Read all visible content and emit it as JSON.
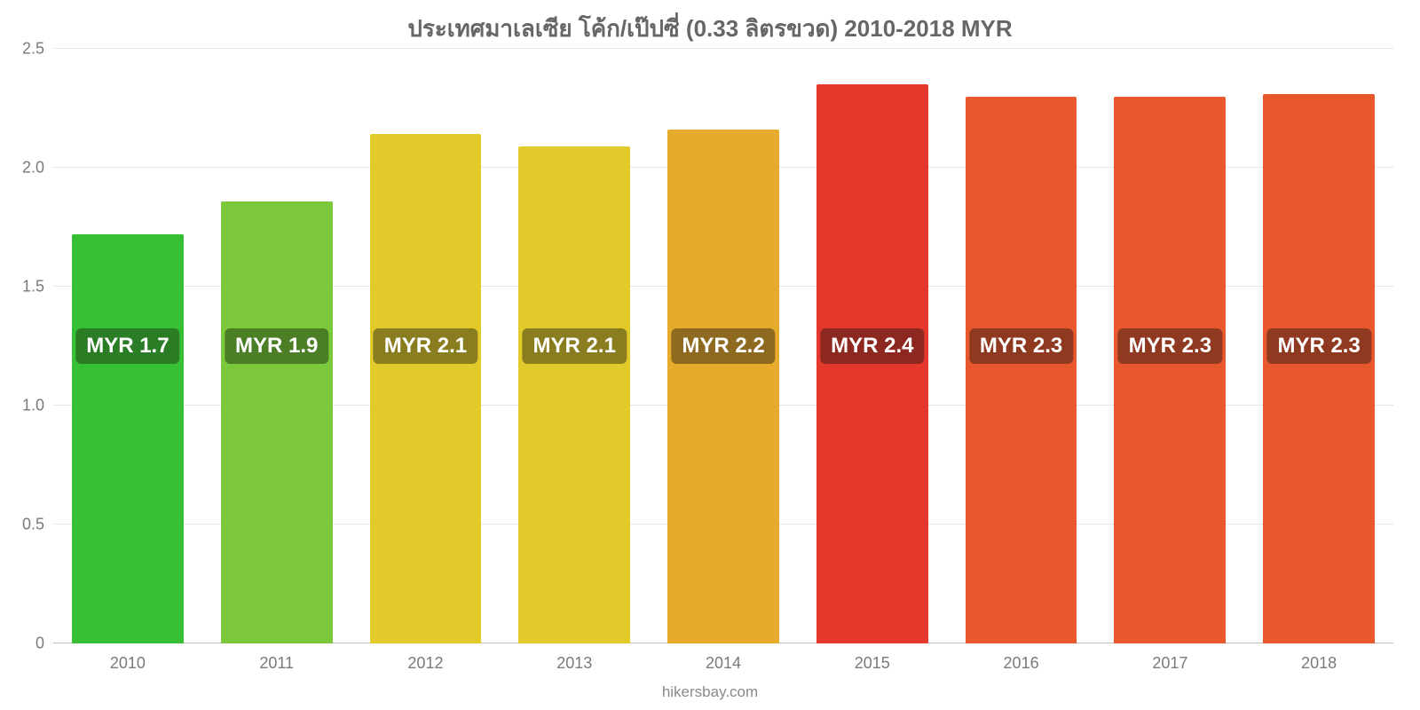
{
  "chart": {
    "type": "bar",
    "title": "ประเทศมาเลเซีย โค้ก/เป๊ปซี่ (0.33 ลิตรขวด) 2010-2018 MYR",
    "title_fontsize": 26,
    "title_color": "#666666",
    "background_color": "#ffffff",
    "grid_color": "#e5e5e5",
    "axis_color": "#bdbdbd",
    "tick_label_color": "#7a7a7a",
    "tick_label_fontsize": 18,
    "categories": [
      "2010",
      "2011",
      "2012",
      "2013",
      "2014",
      "2015",
      "2016",
      "2017",
      "2018"
    ],
    "values": [
      1.72,
      1.86,
      2.14,
      2.09,
      2.16,
      2.35,
      2.3,
      2.3,
      2.31
    ],
    "value_labels": [
      "MYR 1.7",
      "MYR 1.9",
      "MYR 2.1",
      "MYR 2.1",
      "MYR 2.2",
      "MYR 2.4",
      "MYR 2.3",
      "MYR 2.3",
      "MYR 2.3"
    ],
    "bar_colors": [
      "#38c034",
      "#7bc93a",
      "#e2ca2b",
      "#e2ca2b",
      "#e6ab2a",
      "#e5382d",
      "#e9582d",
      "#e9582d",
      "#e9582d"
    ],
    "label_bg_colors": [
      "#2a7d24",
      "#4b7e25",
      "#8a7d1f",
      "#8a7d1f",
      "#8d6a1f",
      "#8d2820",
      "#8f3a20",
      "#8f3a20",
      "#8f3a20"
    ],
    "value_label_color": "#ffffff",
    "value_label_fontsize": 24,
    "value_label_y_value": 1.25,
    "ylim": [
      0,
      2.5
    ],
    "yticks": [
      0,
      0.5,
      1.0,
      1.5,
      2.0,
      2.5
    ],
    "ytick_labels": [
      "0",
      "0.5",
      "1.0",
      "1.5",
      "2.0",
      "2.5"
    ],
    "bar_width": 0.75,
    "source": "hikersbay.com",
    "source_color": "#8a8a8a",
    "source_fontsize": 17
  }
}
